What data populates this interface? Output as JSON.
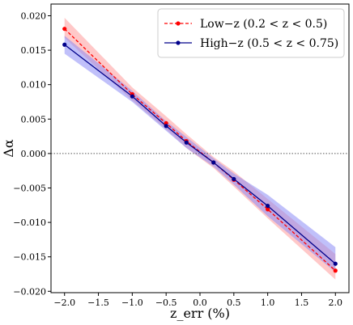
{
  "chart_data": {
    "type": "line",
    "xlabel": "z_err (%)",
    "ylabel": "Δα",
    "xlim": [
      -2.2,
      2.2
    ],
    "ylim": [
      -0.0202,
      0.0217
    ],
    "x_ticks": [
      -2.0,
      -1.5,
      -1.0,
      -0.5,
      0.0,
      0.5,
      1.0,
      1.5,
      2.0
    ],
    "x_tick_labels": [
      "−2.0",
      "−1.5",
      "−1.0",
      "−0.5",
      "0.0",
      "0.5",
      "1.0",
      "1.5",
      "2.0"
    ],
    "y_ticks": [
      0.015,
      0.01,
      0.005,
      0.0,
      -0.005,
      -0.01,
      -0.015,
      -0.02
    ],
    "y_tick_labels": [
      "0.015",
      "0.010",
      "0.005",
      "0.000",
      "−0.005",
      "−0.010",
      "−0.015",
      "−0.020"
    ],
    "ytop_tick": 0.02,
    "ytop_tick_label": "0.020",
    "reference_line": {
      "y": 0.0,
      "style": "dotted",
      "color": "#555555"
    },
    "legend_position": "top-right",
    "grid": false,
    "series": [
      {
        "name": "Low−z (0.2 < z < 0.5)",
        "color": "#ff0000",
        "band_color": "#ff9a9a",
        "line_style": "dashed",
        "x": [
          -2.0,
          -1.0,
          -0.5,
          -0.2,
          0.2,
          0.5,
          1.0,
          2.0
        ],
        "y": [
          0.0181,
          0.0086,
          0.0044,
          0.0018,
          -0.0013,
          -0.0038,
          -0.0081,
          -0.017
        ],
        "band_upper": [
          0.0197,
          0.0096,
          0.0054,
          0.0028,
          -0.0005,
          -0.0026,
          -0.0066,
          -0.0146
        ],
        "band_lower": [
          0.0168,
          0.0077,
          0.0035,
          0.0008,
          -0.0021,
          -0.0048,
          -0.0094,
          -0.0183
        ]
      },
      {
        "name": "High−z (0.5 < z < 0.75)",
        "color": "#00008b",
        "band_color": "#8c8cf5",
        "line_style": "solid",
        "x": [
          -2.0,
          -1.0,
          -0.5,
          -0.2,
          0.2,
          0.5,
          1.0,
          2.0
        ],
        "y": [
          0.0158,
          0.0083,
          0.004,
          0.0016,
          -0.0013,
          -0.0037,
          -0.0076,
          -0.016
        ],
        "band_upper": [
          0.0171,
          0.0091,
          0.0047,
          0.0024,
          -0.0007,
          -0.0029,
          -0.006,
          -0.0136
        ],
        "band_lower": [
          0.0145,
          0.0075,
          0.0033,
          0.0008,
          -0.0019,
          -0.0045,
          -0.0091,
          -0.0172
        ]
      }
    ]
  }
}
